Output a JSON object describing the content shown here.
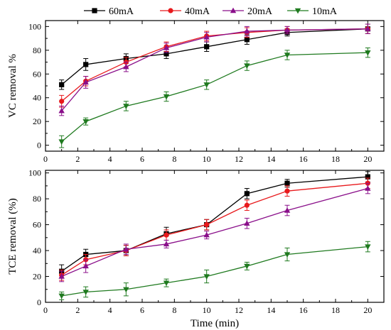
{
  "colors": {
    "60mA": "#000000",
    "40mA": "#e8191c",
    "20mA": "#8a0f8a",
    "10mA": "#1f7a1f"
  },
  "legend": [
    {
      "name": "60mA",
      "marker": "square"
    },
    {
      "name": "40mA",
      "marker": "circle"
    },
    {
      "name": "20mA",
      "marker": "triangle-up"
    },
    {
      "name": "10mA",
      "marker": "triangle-down"
    }
  ],
  "chart_data": [
    {
      "type": "line",
      "panel": "top",
      "title": "",
      "xlabel": "",
      "ylabel": "VC removal %",
      "xlim": [
        0,
        21
      ],
      "ylim": [
        -5,
        105
      ],
      "xticks": [
        0,
        2,
        4,
        6,
        8,
        10,
        12,
        14,
        16,
        18,
        20
      ],
      "yticks": [
        0,
        20,
        40,
        60,
        80,
        100
      ],
      "grid": false,
      "legend_position": "top",
      "x": [
        1,
        2.5,
        5,
        7.5,
        10,
        12.5,
        15,
        20
      ],
      "series": [
        {
          "name": "60mA",
          "values": [
            51,
            68,
            73,
            77,
            83,
            89,
            95,
            98
          ],
          "errors": [
            4,
            5,
            4,
            4,
            4,
            4,
            3,
            4
          ]
        },
        {
          "name": "40mA",
          "values": [
            37,
            54,
            70,
            83,
            92,
            95,
            97,
            98
          ],
          "errors": [
            5,
            4,
            4,
            4,
            4,
            4,
            3,
            4
          ]
        },
        {
          "name": "20mA",
          "values": [
            29,
            53,
            66,
            82,
            91,
            96,
            97,
            98
          ],
          "errors": [
            4,
            5,
            4,
            4,
            4,
            4,
            3,
            4
          ]
        },
        {
          "name": "10mA",
          "values": [
            3,
            20,
            33,
            41,
            51,
            67,
            76,
            78
          ],
          "errors": [
            5,
            3,
            4,
            4,
            4,
            4,
            4,
            4
          ]
        }
      ]
    },
    {
      "type": "line",
      "panel": "bottom",
      "title": "",
      "xlabel": "Time (min)",
      "ylabel": "TCE removal (%)",
      "xlim": [
        0,
        21
      ],
      "ylim": [
        0,
        102
      ],
      "xticks": [
        0,
        2,
        4,
        6,
        8,
        10,
        12,
        14,
        16,
        18,
        20
      ],
      "yticks": [
        0,
        20,
        40,
        60,
        80,
        100
      ],
      "grid": false,
      "x": [
        1,
        2.5,
        5,
        7.5,
        10,
        12.5,
        15,
        20
      ],
      "series": [
        {
          "name": "60mA",
          "values": [
            24,
            37,
            40,
            53,
            60,
            84,
            92,
            97
          ],
          "errors": [
            5,
            4,
            4,
            5,
            4,
            4,
            3,
            4
          ]
        },
        {
          "name": "40mA",
          "values": [
            21,
            33,
            40,
            52,
            60,
            75,
            86,
            92
          ],
          "errors": [
            4,
            4,
            4,
            4,
            4,
            4,
            4,
            4
          ]
        },
        {
          "name": "20mA",
          "values": [
            20,
            28,
            41,
            45,
            52,
            61,
            71,
            88
          ],
          "errors": [
            4,
            5,
            4,
            3,
            3,
            4,
            4,
            4
          ]
        },
        {
          "name": "10mA",
          "values": [
            5,
            8,
            10,
            15,
            20,
            28,
            37,
            43
          ],
          "errors": [
            3,
            4,
            5,
            3,
            5,
            3,
            5,
            4
          ]
        }
      ]
    }
  ]
}
